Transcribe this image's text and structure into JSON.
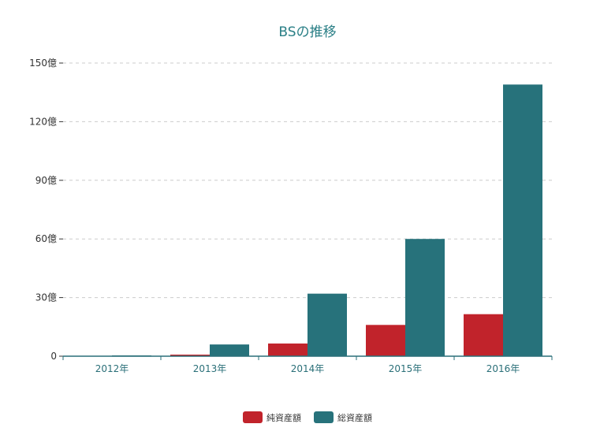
{
  "chart_data": {
    "type": "bar",
    "title": "BSの推移",
    "xlabel": "",
    "ylabel": "",
    "categories": [
      "2012年",
      "2013年",
      "2014年",
      "2015年",
      "2016年"
    ],
    "y_unit_suffix": "億",
    "yticks": [
      0,
      30,
      60,
      90,
      120,
      150
    ],
    "ylim": [
      0,
      150
    ],
    "grid": true,
    "legend_position": "bottom",
    "series": [
      {
        "name": "純資産額",
        "color": "#c1232b",
        "values": [
          0.2,
          0.8,
          6.5,
          16,
          21.5
        ]
      },
      {
        "name": "総資産額",
        "color": "#27727b",
        "values": [
          0.4,
          6,
          32,
          60,
          139
        ]
      }
    ]
  }
}
